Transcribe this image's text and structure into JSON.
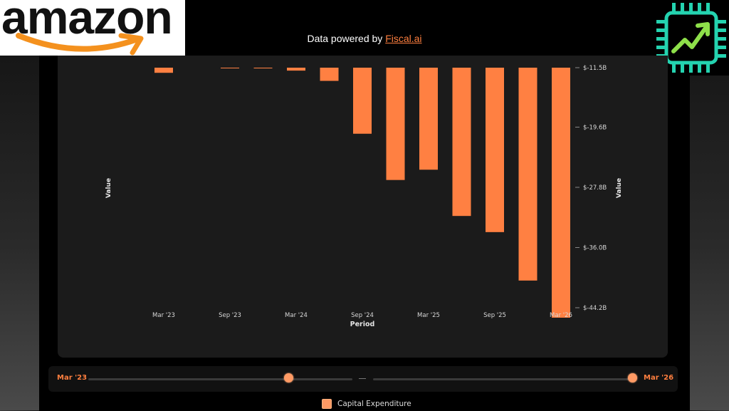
{
  "logo": {
    "text": "amazon"
  },
  "header": {
    "powered_prefix": "Data powered by ",
    "powered_link": "Fiscal.ai"
  },
  "colors": {
    "bar": "#ff8042",
    "accent": "#ff7f3f",
    "panel": "#1b1b1b"
  },
  "chart_data": {
    "type": "bar",
    "categories": [
      "Mar '23",
      "Jun '23",
      "Sep '23",
      "Dec '23",
      "Mar '24",
      "Jun '24",
      "Sep '24",
      "Dec '24",
      "Mar '25",
      "Jun '25",
      "Sep '25",
      "Dec '25",
      "Mar '26"
    ],
    "x_tick_labels": [
      "Mar '23",
      "Sep '23",
      "Mar '24",
      "Sep '24",
      "Mar '25",
      "Sep '25",
      "Mar '26"
    ],
    "series": [
      {
        "name": "Capital Expenditure",
        "values": [
          -12.2,
          null,
          -10.0,
          -11.6,
          -11.9,
          -13.3,
          -20.5,
          -26.8,
          -25.4,
          -31.7,
          -33.9,
          -40.5,
          -46.0
        ]
      }
    ],
    "xlabel": "Period",
    "ylabel_left": "Value",
    "ylabel_right": "Value",
    "y_tick_labels": [
      "$-11.5B",
      "$-19.6B",
      "$-27.8B",
      "$-36.0B",
      "$-44.2B"
    ],
    "y_ticks": [
      -11.5,
      -19.6,
      -27.8,
      -36.0,
      -44.2
    ],
    "ylim": [
      -44.2,
      -11.5
    ],
    "legend": "bottom-center"
  },
  "slider": {
    "start_label": "Mar '23",
    "end_label": "Mar '26"
  }
}
